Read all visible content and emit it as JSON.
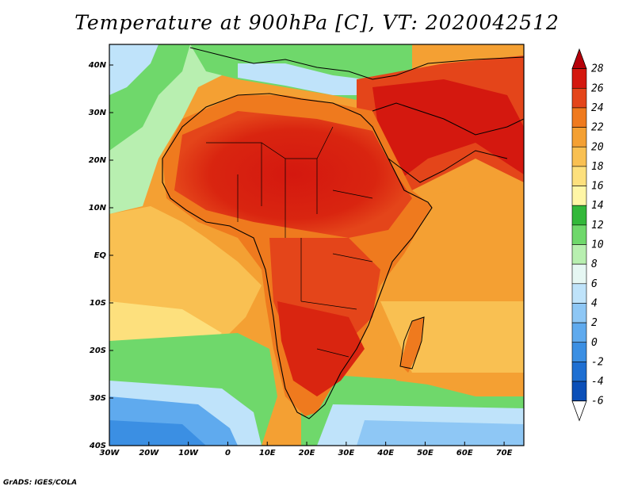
{
  "title": "Temperature at 900hPa [C], VT: 2020042512",
  "credit": "GrADS: IGES/COLA",
  "map": {
    "lon_ticks": [
      "30W",
      "20W",
      "10W",
      "0",
      "10E",
      "20E",
      "30E",
      "40E",
      "50E",
      "60E",
      "70E"
    ],
    "lat_ticks": [
      "40N",
      "30N",
      "20N",
      "10N",
      "EQ",
      "10S",
      "20S",
      "30S",
      "40S"
    ]
  },
  "colorbar": {
    "levels": [
      "28",
      "26",
      "24",
      "22",
      "20",
      "18",
      "16",
      "14",
      "12",
      "10",
      "8",
      "6",
      "4",
      "2",
      "0",
      "-2",
      "-4",
      "-6"
    ],
    "colors": [
      "#ffffff",
      "#061d7e",
      "#0b4fb8",
      "#1e6fd2",
      "#3b8fe3",
      "#5faaee",
      "#8ec7f5",
      "#bfe3fa",
      "#e6f7f3",
      "#b8efb0",
      "#6fd86b",
      "#33b83a",
      "#fff6a6",
      "#fde07d",
      "#f9c052",
      "#f4a033",
      "#ef7a1e",
      "#e4451a",
      "#d4180f",
      "#b5000a"
    ]
  }
}
